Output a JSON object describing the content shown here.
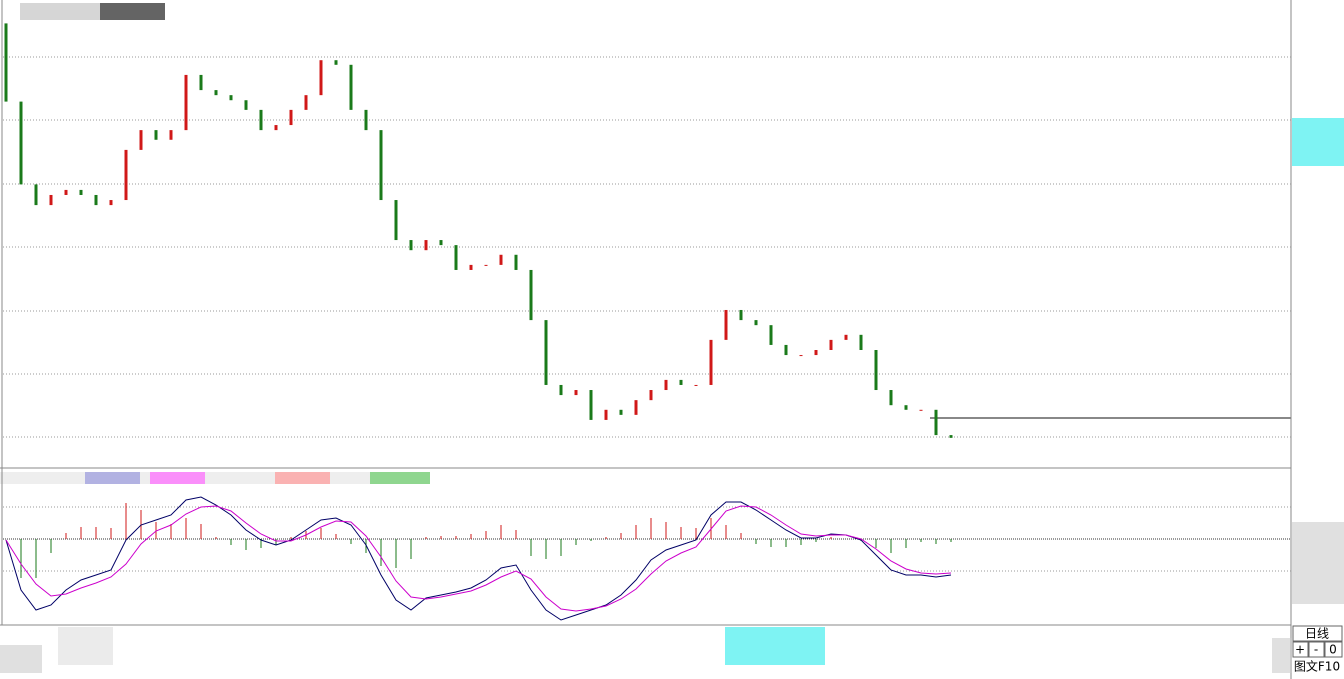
{
  "chart_data": [
    {
      "type": "candlestick",
      "up_color": "#d01818",
      "down_color": "#1a7a1a",
      "ylim": [
        0,
        100
      ],
      "open": [
        96,
        79,
        61,
        56.5,
        58.7,
        59.8,
        58.7,
        56.5,
        57.6,
        68.5,
        72.8,
        70.7,
        72.8,
        84.8,
        81.5,
        80.4,
        79.3,
        77.2,
        72.8,
        73.9,
        77.2,
        80.4,
        88,
        87,
        77.2,
        72.8,
        57.6,
        48.9,
        46.7,
        48.9,
        47.8,
        42.4,
        43.5,
        43.5,
        45.7,
        42.4,
        31.5,
        17.4,
        15.2,
        16.3,
        9.8,
        12,
        10.9,
        14.1,
        16.3,
        18.5,
        17.4,
        17.4,
        27.2,
        33.7,
        31.5,
        30.4,
        26.1,
        23.9,
        23.9,
        25,
        27.2,
        28.3,
        25,
        16.3,
        13,
        12,
        12,
        6.5
      ],
      "close": [
        79,
        61,
        56.5,
        58.7,
        59.8,
        58.7,
        56.5,
        57.6,
        68.5,
        72.8,
        70.7,
        72.8,
        84.8,
        81.5,
        80.4,
        79.3,
        77.2,
        72.8,
        73.9,
        77.2,
        80.4,
        88,
        87,
        77.2,
        72.8,
        57.6,
        48.9,
        46.7,
        48.9,
        47.8,
        42.4,
        43.5,
        43.5,
        45.7,
        42.4,
        31.5,
        17.4,
        15.2,
        16.3,
        9.8,
        12,
        10.9,
        14.1,
        16.3,
        18.5,
        17.4,
        17.4,
        27.2,
        33.7,
        31.5,
        30.4,
        26.1,
        23.9,
        23.9,
        25,
        27.2,
        28.3,
        25,
        16.3,
        13,
        12,
        12,
        6.5,
        5.9
      ]
    },
    {
      "type": "macd",
      "ylim": [
        -86,
        69
      ],
      "series": [
        {
          "color": "#000066",
          "values": [
            -1,
            -51,
            -71,
            -66,
            -51,
            -41,
            -36,
            -31,
            -1,
            14,
            19,
            24,
            39,
            42,
            34,
            24,
            9,
            -1,
            -6,
            -1,
            9,
            19,
            21,
            14,
            -6,
            -36,
            -61,
            -71,
            -59,
            -56,
            -53,
            -49,
            -41,
            -29,
            -26,
            -51,
            -71,
            -81,
            -76,
            -71,
            -66,
            -56,
            -41,
            -21,
            -11,
            -6,
            -1,
            24,
            37,
            37,
            29,
            19,
            9,
            1,
            1,
            5,
            4,
            -1,
            -16,
            -31,
            -36,
            -36,
            -38,
            -36
          ]
        },
        {
          "color": "#cc00cc",
          "values": [
            -1,
            -25,
            -45,
            -57,
            -55,
            -49,
            -44,
            -38,
            -25,
            -5,
            8,
            14,
            25,
            32,
            33,
            28,
            16,
            5,
            -2,
            -2,
            4,
            12,
            18,
            17,
            3,
            -18,
            -42,
            -58,
            -60,
            -58,
            -55,
            -52,
            -46,
            -38,
            -32,
            -40,
            -58,
            -70,
            -72,
            -70,
            -67,
            -60,
            -50,
            -35,
            -22,
            -14,
            -8,
            10,
            28,
            33,
            32,
            24,
            14,
            5,
            3,
            4,
            4,
            0,
            -10,
            -22,
            -30,
            -34,
            -35,
            -34
          ]
        }
      ],
      "histogram": [
        0,
        -39,
        -39,
        -14,
        6,
        12,
        12,
        11,
        36,
        29,
        17,
        15,
        21,
        15,
        2,
        -6,
        -11,
        -9,
        -6,
        2,
        8,
        11,
        5,
        -5,
        -14,
        -27,
        -29,
        -20,
        2,
        3,
        3,
        5,
        8,
        14,
        9,
        -17,
        -20,
        -17,
        -6,
        -2,
        2,
        6,
        14,
        21,
        17,
        12,
        11,
        21,
        14,
        6,
        -5,
        -8,
        -8,
        -6,
        -3,
        2,
        0,
        -2,
        -9,
        -14,
        -9,
        -3,
        -5,
        -3
      ]
    }
  ],
  "controls": {
    "period": "日线",
    "buttons": [
      "+",
      "-",
      "0"
    ],
    "f10": "图文F10"
  }
}
